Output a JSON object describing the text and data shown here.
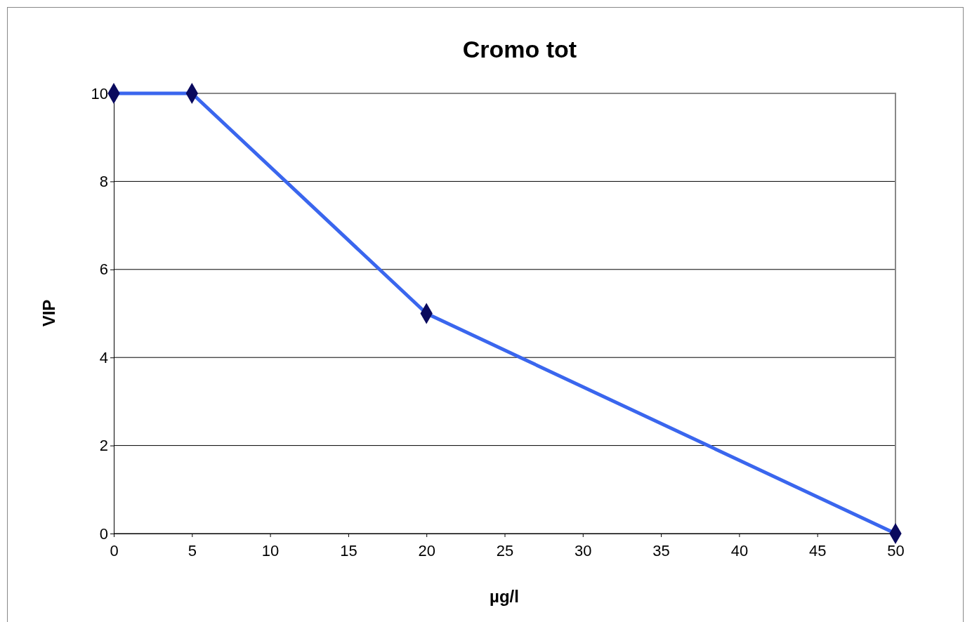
{
  "chart_data": {
    "type": "line",
    "title": "Cromo tot",
    "xlabel": "µg/l",
    "ylabel": "VIP",
    "x": [
      0,
      5,
      20,
      50
    ],
    "series": [
      {
        "color": "#3a66ee",
        "values": [
          10,
          10,
          5,
          0
        ]
      }
    ],
    "xlim": [
      0,
      50
    ],
    "xticks": [
      0,
      5,
      10,
      15,
      20,
      25,
      30,
      35,
      40,
      45,
      50
    ],
    "ylim": [
      0,
      10
    ],
    "yticks": [
      0,
      2,
      4,
      6,
      8,
      10
    ],
    "grid": "y",
    "marker": "diamond",
    "line_style": "solid"
  }
}
